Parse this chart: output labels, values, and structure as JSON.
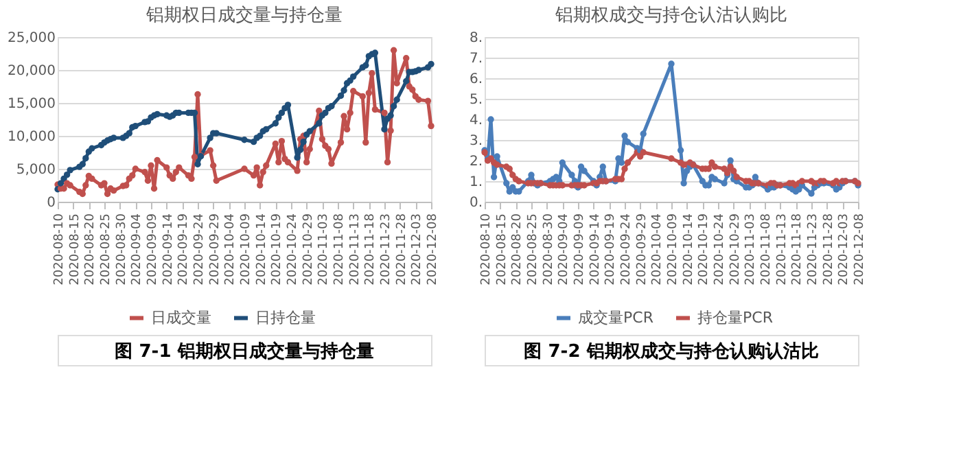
{
  "chart_data": [
    {
      "type": "line",
      "title": "铝期权日成交量与持仓量",
      "annotations": [
        "图 7-1  铝期权日成交量与持仓量"
      ],
      "x": [
        "2020-08-10",
        "2020-08-11",
        "2020-08-12",
        "2020-08-13",
        "2020-08-14",
        "2020-08-17",
        "2020-08-18",
        "2020-08-19",
        "2020-08-20",
        "2020-08-21",
        "2020-08-24",
        "2020-08-25",
        "2020-08-26",
        "2020-08-27",
        "2020-08-28",
        "2020-08-31",
        "2020-09-01",
        "2020-09-02",
        "2020-09-03",
        "2020-09-04",
        "2020-09-07",
        "2020-09-08",
        "2020-09-09",
        "2020-09-10",
        "2020-09-11",
        "2020-09-14",
        "2020-09-15",
        "2020-09-16",
        "2020-09-17",
        "2020-09-18",
        "2020-09-21",
        "2020-09-22",
        "2020-09-23",
        "2020-09-24",
        "2020-09-25",
        "2020-09-28",
        "2020-09-29",
        "2020-09-30",
        "2020-10-09",
        "2020-10-12",
        "2020-10-13",
        "2020-10-14",
        "2020-10-15",
        "2020-10-16",
        "2020-10-19",
        "2020-10-20",
        "2020-10-21",
        "2020-10-22",
        "2020-10-23",
        "2020-10-26",
        "2020-10-27",
        "2020-10-28",
        "2020-10-29",
        "2020-10-30",
        "2020-11-02",
        "2020-11-03",
        "2020-11-04",
        "2020-11-05",
        "2020-11-06",
        "2020-11-09",
        "2020-11-10",
        "2020-11-11",
        "2020-11-12",
        "2020-11-13",
        "2020-11-16",
        "2020-11-17",
        "2020-11-18",
        "2020-11-19",
        "2020-11-20",
        "2020-11-23",
        "2020-11-24",
        "2020-11-25",
        "2020-11-26",
        "2020-11-27",
        "2020-11-30",
        "2020-12-01",
        "2020-12-02",
        "2020-12-03",
        "2020-12-04",
        "2020-12-07",
        "2020-12-08"
      ],
      "series": [
        {
          "name": "日成交量",
          "color": "#c0504d",
          "values": [
            2600,
            2000,
            2000,
            2800,
            2500,
            1500,
            1200,
            2500,
            3900,
            3500,
            2500,
            2800,
            1200,
            2000,
            1700,
            2400,
            2500,
            3500,
            4000,
            5000,
            4500,
            3200,
            5500,
            2000,
            6300,
            5200,
            4000,
            3500,
            4500,
            5200,
            4000,
            3500,
            6800,
            16300,
            7000,
            7800,
            5500,
            3200,
            5000,
            4000,
            5200,
            2500,
            4500,
            5500,
            8800,
            6000,
            9200,
            6500,
            6000,
            4700,
            9500,
            10000,
            6000,
            8000,
            13800,
            9500,
            8500,
            8000,
            5800,
            9000,
            13000,
            11000,
            13500,
            16800,
            16000,
            9000,
            16500,
            19500,
            14000,
            13500,
            6000,
            10800,
            23000,
            18000,
            21800,
            17500,
            17000,
            16000,
            15500,
            15300,
            11500
          ]
        },
        {
          "name": "日持仓量",
          "color": "#1f4e79",
          "values": [
            1900,
            2800,
            3500,
            4100,
            4800,
            5300,
            5700,
            6600,
            7600,
            8100,
            8600,
            9000,
            9300,
            9500,
            9700,
            9700,
            10000,
            10400,
            11300,
            11500,
            12100,
            12200,
            12800,
            13100,
            13300,
            13100,
            12900,
            13100,
            13500,
            13500,
            13500,
            13500,
            13500,
            5700,
            6900,
            9700,
            10400,
            10400,
            9400,
            9100,
            9700,
            10000,
            10700,
            11000,
            11900,
            12800,
            13500,
            14200,
            14700,
            6700,
            7900,
            9100,
            10200,
            10700,
            11900,
            13100,
            13500,
            14200,
            14500,
            16100,
            16900,
            18000,
            18400,
            19000,
            20400,
            20700,
            22100,
            22400,
            22600,
            11000,
            12600,
            13100,
            14500,
            15500,
            18300,
            19700,
            19700,
            19800,
            20000,
            20400,
            20900
          ]
        }
      ],
      "xlim": [
        "2020-08-10",
        "2020-12-08"
      ],
      "xticks": [
        "2020-08-10",
        "2020-08-15",
        "2020-08-20",
        "2020-08-25",
        "2020-08-30",
        "2020-09-04",
        "2020-09-09",
        "2020-09-14",
        "2020-09-19",
        "2020-09-24",
        "2020-09-29",
        "2020-10-04",
        "2020-10-09",
        "2020-10-14",
        "2020-10-19",
        "2020-10-24",
        "2020-10-29",
        "2020-11-03",
        "2020-11-08",
        "2020-11-13",
        "2020-11-18",
        "2020-11-23",
        "2020-11-28",
        "2020-12-03",
        "2020-12-08"
      ],
      "ylim": [
        0,
        25000
      ],
      "yticks": [
        0,
        {
          "value": 5000,
          "label": "5,000"
        },
        {
          "value": 10000,
          "label": "10,000"
        },
        {
          "value": 15000,
          "label": "15,000"
        },
        {
          "value": 20000,
          "label": "20,000"
        },
        {
          "value": 25000,
          "label": "25,000"
        }
      ],
      "grid": "y",
      "legend": "bottom",
      "marker": "circle",
      "line_style": "solid"
    },
    {
      "type": "line",
      "title": "铝期权成交与持仓认沽认购比",
      "annotations": [
        "图 7-2  铝期权成交与持仓认购认沽比"
      ],
      "x": [
        "2020-08-10",
        "2020-08-11",
        "2020-08-12",
        "2020-08-13",
        "2020-08-14",
        "2020-08-17",
        "2020-08-18",
        "2020-08-19",
        "2020-08-20",
        "2020-08-21",
        "2020-08-24",
        "2020-08-25",
        "2020-08-26",
        "2020-08-27",
        "2020-08-28",
        "2020-08-31",
        "2020-09-01",
        "2020-09-02",
        "2020-09-03",
        "2020-09-04",
        "2020-09-07",
        "2020-09-08",
        "2020-09-09",
        "2020-09-10",
        "2020-09-11",
        "2020-09-14",
        "2020-09-15",
        "2020-09-16",
        "2020-09-17",
        "2020-09-18",
        "2020-09-21",
        "2020-09-22",
        "2020-09-23",
        "2020-09-24",
        "2020-09-25",
        "2020-09-28",
        "2020-09-29",
        "2020-09-30",
        "2020-10-09",
        "2020-10-12",
        "2020-10-13",
        "2020-10-14",
        "2020-10-15",
        "2020-10-16",
        "2020-10-19",
        "2020-10-20",
        "2020-10-21",
        "2020-10-22",
        "2020-10-23",
        "2020-10-26",
        "2020-10-27",
        "2020-10-28",
        "2020-10-29",
        "2020-10-30",
        "2020-11-02",
        "2020-11-03",
        "2020-11-04",
        "2020-11-05",
        "2020-11-06",
        "2020-11-09",
        "2020-11-10",
        "2020-11-11",
        "2020-11-12",
        "2020-11-13",
        "2020-11-16",
        "2020-11-17",
        "2020-11-18",
        "2020-11-19",
        "2020-11-20",
        "2020-11-23",
        "2020-11-24",
        "2020-11-25",
        "2020-11-26",
        "2020-11-27",
        "2020-11-30",
        "2020-12-01",
        "2020-12-02",
        "2020-12-03",
        "2020-12-04",
        "2020-12-07",
        "2020-12-08"
      ],
      "series": [
        {
          "name": "成交量PCR",
          "color": "#4a7ebb",
          "values": [
            2.5,
            2.1,
            4.0,
            1.2,
            2.2,
            0.9,
            0.5,
            0.7,
            0.5,
            0.5,
            1.0,
            1.3,
            0.9,
            0.8,
            0.9,
            1.0,
            1.1,
            1.2,
            1.0,
            1.9,
            1.3,
            1.0,
            0.7,
            1.7,
            1.5,
            1.0,
            0.8,
            1.2,
            1.7,
            1.0,
            1.0,
            2.1,
            1.9,
            3.2,
            2.9,
            2.6,
            2.5,
            3.3,
            6.7,
            2.5,
            0.9,
            1.5,
            1.7,
            1.8,
            1.0,
            0.8,
            0.8,
            1.2,
            1.1,
            0.9,
            1.3,
            2.0,
            1.1,
            1.0,
            0.7,
            0.7,
            0.8,
            1.2,
            0.9,
            0.6,
            0.7,
            0.7,
            0.8,
            0.8,
            0.7,
            0.6,
            0.5,
            0.6,
            0.8,
            0.4,
            0.7,
            0.8,
            0.9,
            0.9,
            0.8,
            0.6,
            0.7,
            0.9,
            1.0,
            1.0,
            0.8
          ]
        },
        {
          "name": "持仓量PCR",
          "color": "#c0504d",
          "values": [
            2.4,
            2.0,
            2.1,
            1.9,
            1.8,
            1.7,
            1.6,
            1.3,
            1.1,
            1.0,
            0.9,
            0.9,
            0.9,
            0.9,
            0.9,
            0.8,
            0.8,
            0.8,
            0.8,
            0.8,
            0.8,
            0.8,
            0.8,
            0.8,
            0.8,
            0.9,
            0.9,
            1.0,
            1.0,
            1.0,
            1.1,
            1.1,
            1.1,
            1.6,
            1.9,
            2.4,
            2.2,
            2.4,
            2.1,
            1.9,
            1.8,
            1.8,
            1.9,
            1.8,
            1.6,
            1.6,
            1.6,
            1.9,
            1.7,
            1.6,
            1.4,
            1.7,
            1.5,
            1.2,
            1.0,
            1.0,
            0.9,
            0.9,
            0.9,
            0.8,
            0.9,
            0.9,
            0.8,
            0.8,
            0.9,
            0.9,
            0.8,
            0.9,
            1.0,
            1.0,
            0.9,
            0.9,
            1.0,
            1.0,
            0.9,
            1.0,
            0.9,
            1.0,
            1.0,
            1.0,
            0.9
          ]
        }
      ],
      "xlim": [
        "2020-08-10",
        "2020-12-08"
      ],
      "xticks": [
        "2020-08-10",
        "2020-08-15",
        "2020-08-20",
        "2020-08-25",
        "2020-08-30",
        "2020-09-04",
        "2020-09-09",
        "2020-09-14",
        "2020-09-19",
        "2020-09-24",
        "2020-09-29",
        "2020-10-04",
        "2020-10-09",
        "2020-10-14",
        "2020-10-19",
        "2020-10-24",
        "2020-10-29",
        "2020-11-03",
        "2020-11-08",
        "2020-11-13",
        "2020-11-18",
        "2020-11-23",
        "2020-11-28",
        "2020-12-03",
        "2020-12-08"
      ],
      "ylim": [
        0,
        8
      ],
      "yticks": [
        {
          "value": 0,
          "label": "0."
        },
        {
          "value": 1,
          "label": "1."
        },
        {
          "value": 2,
          "label": "2."
        },
        {
          "value": 3,
          "label": "3."
        },
        {
          "value": 4,
          "label": "4."
        },
        {
          "value": 5,
          "label": "5."
        },
        {
          "value": 6,
          "label": "6."
        },
        {
          "value": 7,
          "label": "7."
        },
        {
          "value": 8,
          "label": "8."
        }
      ],
      "grid": "y",
      "legend": "bottom",
      "marker": "circle",
      "line_style": "solid"
    }
  ]
}
